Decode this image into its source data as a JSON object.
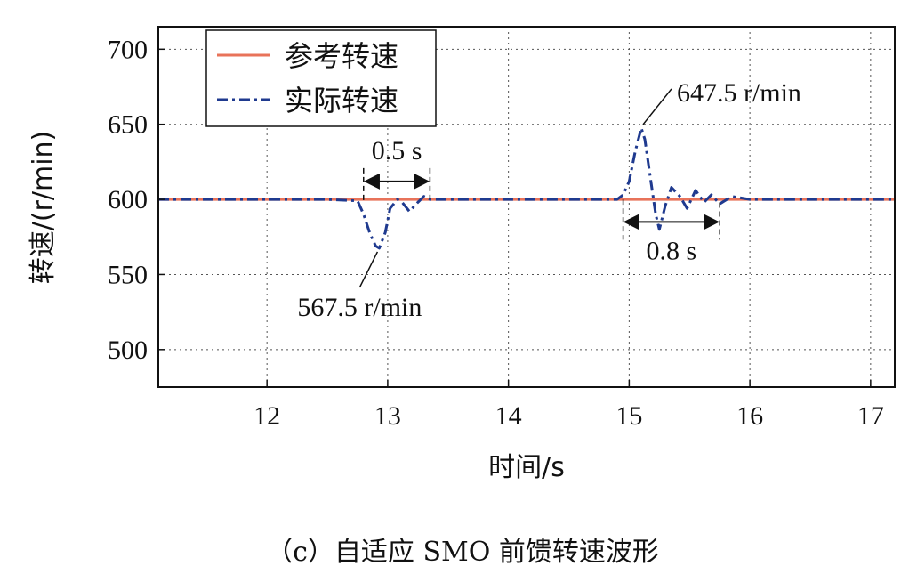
{
  "caption": "（c）自适应 SMO 前馈转速波形",
  "chart_data": {
    "type": "line",
    "xlabel": "时间/s",
    "ylabel": "转速/(r/min)",
    "xlim": [
      11.1,
      17.2
    ],
    "ylim": [
      475,
      715
    ],
    "xticks": [
      12,
      13,
      14,
      15,
      16,
      17
    ],
    "yticks": [
      500,
      550,
      600,
      650,
      700
    ],
    "grid": true,
    "legend_position": "top-left",
    "series": [
      {
        "name": "参考转速",
        "color": "#e8735a",
        "style": "solid",
        "x": [
          11.1,
          17.2
        ],
        "y": [
          600,
          600
        ]
      },
      {
        "name": "实际转速",
        "color": "#1f3a8f",
        "style": "dash-dot",
        "x": [
          11.1,
          11.5,
          12.0,
          12.5,
          12.75,
          12.8,
          12.85,
          12.9,
          12.93,
          12.98,
          13.02,
          13.08,
          13.12,
          13.18,
          13.25,
          13.3,
          13.35,
          13.5,
          14.0,
          14.5,
          14.9,
          14.95,
          15.0,
          15.05,
          15.1,
          15.13,
          15.18,
          15.22,
          15.25,
          15.3,
          15.35,
          15.42,
          15.48,
          15.55,
          15.62,
          15.68,
          15.75,
          15.85,
          16.0,
          16.5,
          17.2
        ],
        "y": [
          600,
          600,
          600,
          600,
          599,
          590,
          578,
          569,
          567.5,
          578,
          594,
          600,
          598,
          592,
          598,
          602,
          600,
          600,
          600,
          600,
          600,
          603,
          612,
          632,
          647.5,
          640,
          612,
          590,
          580,
          596,
          608,
          602,
          594,
          606,
          598,
          603,
          597,
          602,
          600,
          600,
          600
        ]
      }
    ],
    "annotations": [
      {
        "text": "0.5 s",
        "x_from": 12.8,
        "x_to": 13.35,
        "y": 612
      },
      {
        "text": "0.8 s",
        "x_from": 14.95,
        "x_to": 15.75,
        "y": 585
      },
      {
        "text": "567.5 r/min",
        "x": 12.93,
        "y": 567.5
      },
      {
        "text": "647.5 r/min",
        "x": 15.1,
        "y": 647.5
      }
    ]
  }
}
